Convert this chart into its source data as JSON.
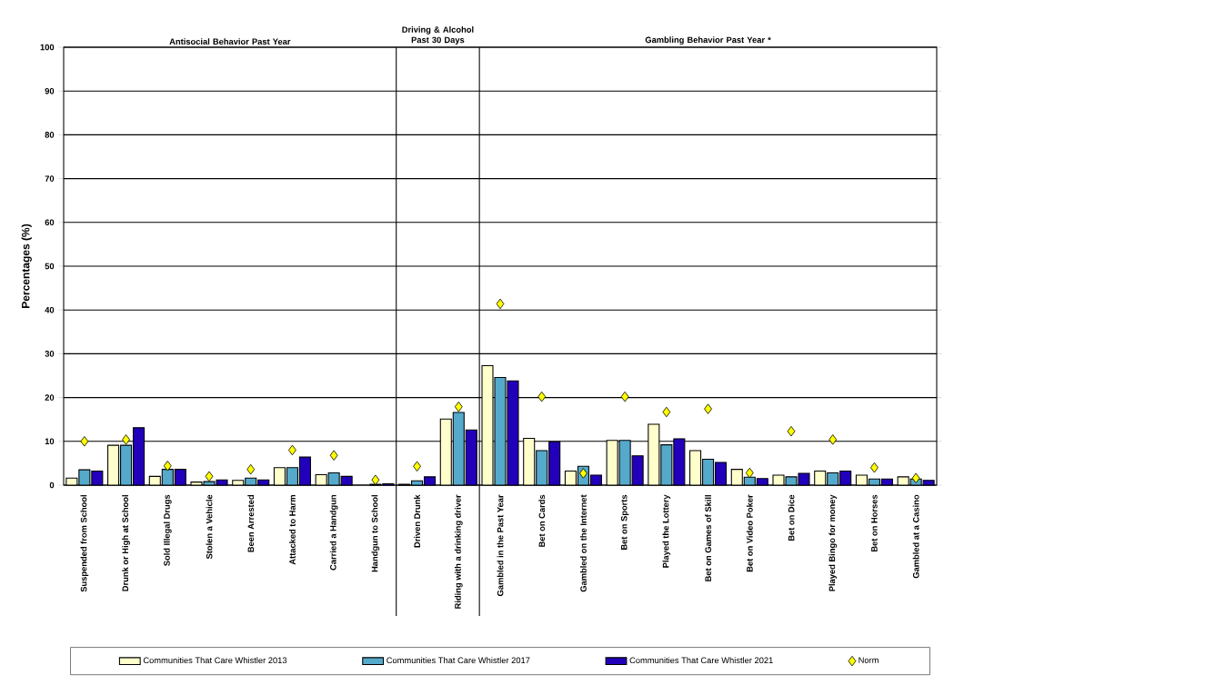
{
  "chart_data": {
    "type": "bar",
    "ylabel": "Percentages (%)",
    "categories": [
      "Suspended from School",
      "Drunk or High at School",
      "Sold Illegal Drugs",
      "Stolen a Vehicle",
      "Been Arrested",
      "Attacked to Harm",
      "Carried a Handgun",
      "Handgun to School",
      "Driven Drunk",
      "Riding with a drinking driver",
      "Gambled in the Past Year",
      "Bet on Cards",
      "Gambled on the Internet",
      "Bet on Sports",
      "Played the Lottery",
      "Bet on Games of Skill",
      "Bet on Video Poker",
      "Bet on Dice",
      "Played Bingo for money",
      "Bet on Horses",
      "Gambled at a Casino"
    ],
    "series": [
      {
        "name": "Communities That Care Whistler 2013",
        "color": "#ffffcc",
        "values": [
          1.6,
          9.1,
          2.0,
          0.7,
          1.1,
          4.0,
          2.4,
          null,
          0.2,
          15.1,
          27.3,
          10.7,
          3.2,
          10.2,
          13.9,
          7.9,
          3.6,
          2.3,
          3.2,
          2.3,
          1.9
        ]
      },
      {
        "name": "Communities That Care Whistler 2017",
        "color": "#55aacc",
        "values": [
          3.5,
          9.1,
          3.6,
          0.8,
          1.6,
          4.0,
          2.8,
          0.2,
          1.0,
          16.6,
          24.6,
          7.9,
          4.3,
          10.2,
          9.2,
          5.9,
          1.8,
          1.9,
          2.8,
          1.4,
          1.4
        ]
      },
      {
        "name": "Communities That Care Whistler 2021",
        "color": "#2200bb",
        "values": [
          3.2,
          13.1,
          3.6,
          1.2,
          1.2,
          6.4,
          2.0,
          0.3,
          1.9,
          12.6,
          23.8,
          9.9,
          2.3,
          6.7,
          10.6,
          5.2,
          1.5,
          2.7,
          3.2,
          1.4,
          1.1
        ]
      },
      {
        "name": "Norm",
        "type": "scatter",
        "marker": "diamond",
        "color": "#ffff00",
        "values": [
          10.0,
          10.4,
          4.4,
          2.0,
          3.6,
          8.0,
          6.8,
          1.2,
          4.3,
          17.9,
          41.4,
          20.2,
          2.7,
          20.2,
          16.7,
          17.4,
          2.8,
          12.3,
          10.4,
          4.0,
          1.6
        ]
      }
    ],
    "ylim": [
      0,
      100
    ],
    "yticks": [
      0,
      10,
      20,
      30,
      40,
      50,
      60,
      70,
      80,
      90,
      100
    ],
    "grid": "y",
    "legend": "bottom",
    "annotations": [
      "Antisocial Behavior Past Year",
      "Driving & Alcohol Past 30 Days",
      "Gambling Behavior Past Year *"
    ]
  }
}
